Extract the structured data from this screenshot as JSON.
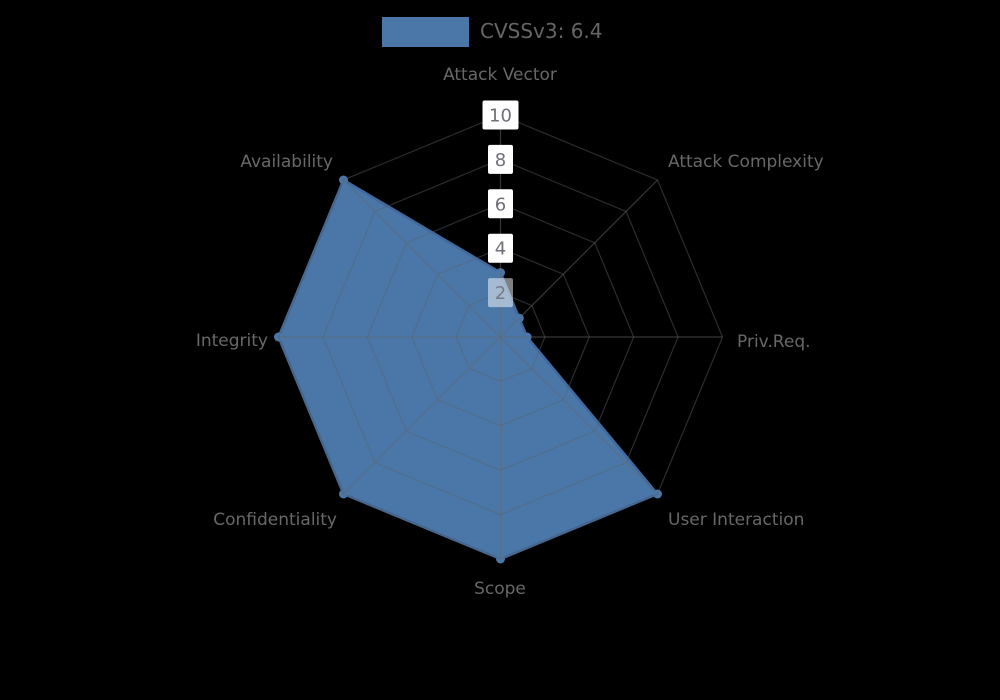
{
  "chart_data": {
    "type": "radar",
    "title": "",
    "legend": [
      {
        "label": "CVSSv3: 6.4",
        "color": "#4a77a8"
      }
    ],
    "axes": [
      "Attack Vector",
      "Attack Complexity",
      "Priv.Req.",
      "User Interaction",
      "Scope",
      "Confidentiality",
      "Integrity",
      "Availability"
    ],
    "axis_max": 10,
    "axis_min": 0,
    "tick_interval": 2,
    "ticks": [
      2,
      4,
      6,
      8,
      10
    ],
    "series": [
      {
        "name": "CVSSv3: 6.4",
        "values": [
          2.9,
          1.2,
          1.2,
          10,
          10,
          10,
          10,
          10
        ],
        "fill_color": "#4a77a8",
        "stroke_color": "#41699b"
      }
    ],
    "layout_hints": {
      "grid_shape": "polygon",
      "grid_on": true,
      "legend_position": "top-center",
      "tick_labels_on_first_axis": true
    },
    "colors": {
      "background": "#000000",
      "ring_line": "rgba(90,97,106,0.45)",
      "spoke_line": "rgba(98,104,112,0.52)",
      "tick_text": "#6e7079",
      "tick_box": "#ffffff",
      "tick_box_overlapped_opacity": 0.5,
      "axis_label_text": "#686868",
      "legend_text": "#666666"
    }
  }
}
